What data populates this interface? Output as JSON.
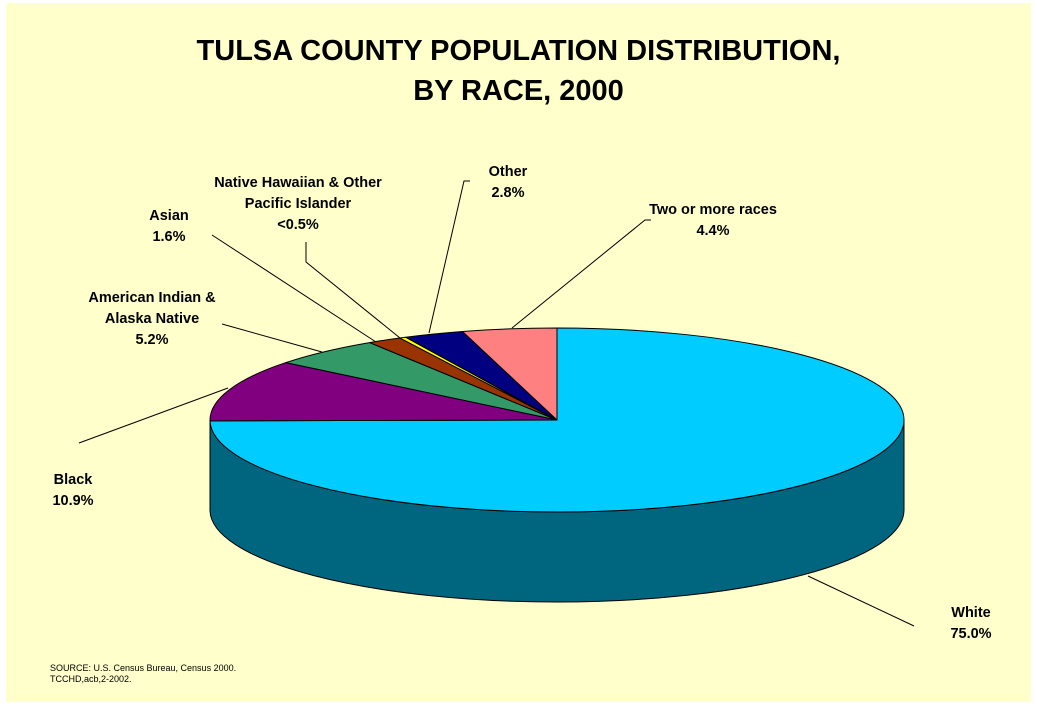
{
  "title": {
    "line1": "TULSA COUNTY POPULATION DISTRIBUTION,",
    "line2": "BY RACE, 2000"
  },
  "source": {
    "line1": "SOURCE:  U.S. Census Bureau, Census 2000.",
    "line2": "TCCHD,acb,2-2002."
  },
  "chart_data": {
    "type": "pie",
    "style": "3d",
    "legend": "none",
    "categories": [
      "White",
      "Black",
      "American Indian & Alaska Native",
      "Asian",
      "Native Hawaiian & Other Pacific Islander",
      "Other",
      "Two or more races"
    ],
    "values": [
      75.0,
      10.9,
      5.2,
      1.6,
      0.3,
      2.8,
      4.4
    ],
    "colors": [
      "#00ccff",
      "#800080",
      "#339966",
      "#993300",
      "#ffff00",
      "#000080",
      "#ff8080"
    ],
    "side_colors": [
      "#006680",
      "#400040",
      "#1a4d33",
      "#4d1a00",
      "#808000",
      "#000040",
      "#804040"
    ],
    "labels": [
      {
        "lines": [
          "White",
          "75.0%"
        ]
      },
      {
        "lines": [
          "Black",
          "10.9%"
        ]
      },
      {
        "lines": [
          "American Indian &",
          "Alaska Native",
          "5.2%"
        ]
      },
      {
        "lines": [
          "Asian",
          "1.6%"
        ]
      },
      {
        "lines": [
          "Native Hawaiian & Other",
          "Pacific Islander",
          "<0.5%"
        ]
      },
      {
        "lines": [
          "Other",
          "2.8%"
        ]
      },
      {
        "lines": [
          "Two or more races",
          "4.4%"
        ]
      }
    ]
  }
}
